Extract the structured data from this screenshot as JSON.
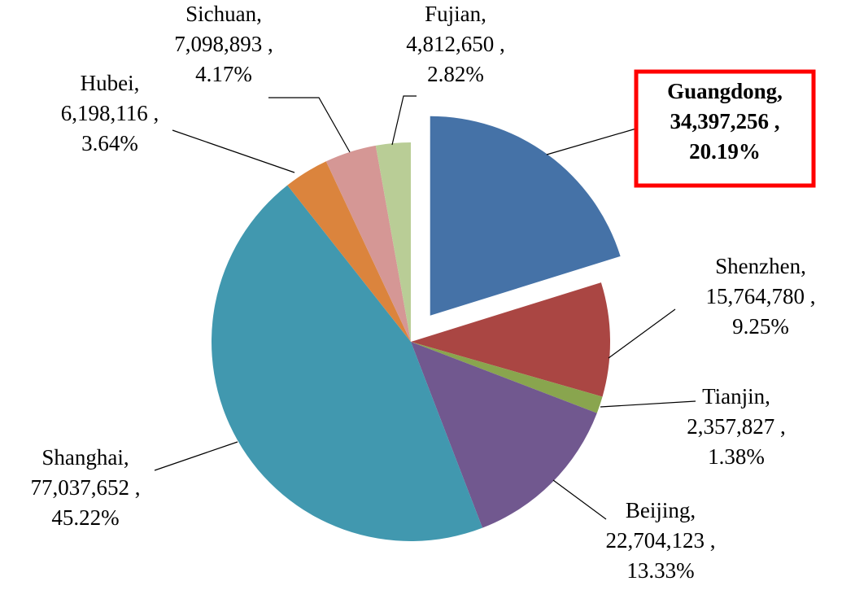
{
  "chart_data": {
    "type": "pie",
    "categories": [
      "Guangdong,",
      "Shenzhen,",
      "Tianjin,",
      "Beijing,",
      "Shanghai,",
      "Hubei,",
      "Sichuan,",
      "Fujian,"
    ],
    "values": [
      34397256,
      15764780,
      2357827,
      22704123,
      77037652,
      6198116,
      7098893,
      4812650
    ],
    "value_labels": [
      "34,397,256 ,",
      "15,764,780 ,",
      "2,357,827 ,",
      "22,704,123 ,",
      "77,037,652 ,",
      "6,198,116 ,",
      "7,098,893 ,",
      "4,812,650 ,"
    ],
    "percents": [
      20.19,
      9.25,
      1.38,
      13.33,
      45.22,
      3.64,
      4.17,
      2.82
    ],
    "percent_labels": [
      "20.19%",
      "9.25%",
      "1.38%",
      "13.33%",
      "45.22%",
      "3.64%",
      "4.17%",
      "2.82%"
    ],
    "colors": [
      "#4572a7",
      "#aa4643",
      "#89a54e",
      "#71588f",
      "#4198af",
      "#db843d",
      "#d59795",
      "#b9cd96"
    ],
    "exploded_index": 0,
    "highlight_color": "#ff0000"
  }
}
